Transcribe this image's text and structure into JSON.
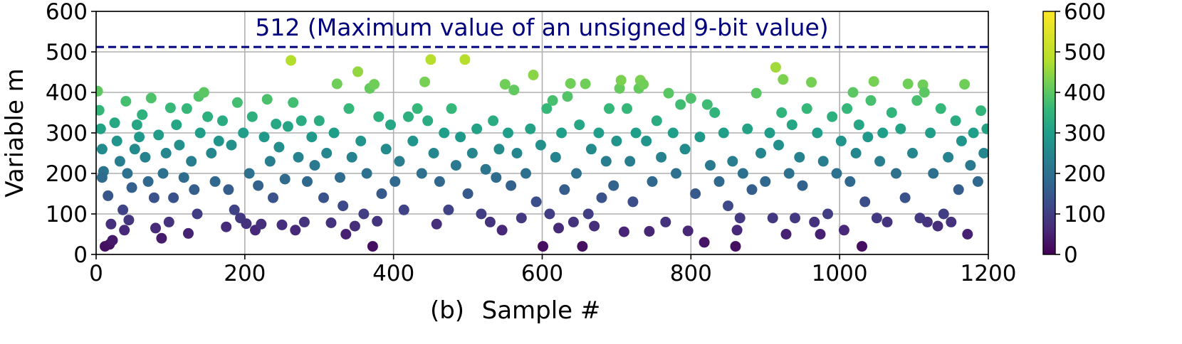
{
  "chart_data": {
    "type": "scatter",
    "xlabel": "Sample #",
    "panel_label": "(b)",
    "ylabel": "Variable m",
    "xlim": [
      0,
      1200
    ],
    "ylim": [
      0,
      600
    ],
    "x_ticks": [
      "0",
      "200",
      "400",
      "600",
      "800",
      "1000",
      "1200"
    ],
    "y_ticks": [
      "0",
      "100",
      "200",
      "300",
      "400",
      "500",
      "600"
    ],
    "grid": true,
    "colormap": "viridis",
    "colorbar": {
      "min": 0,
      "max": 600,
      "ticks": [
        "0",
        "100",
        "200",
        "300",
        "400",
        "500",
        "600"
      ]
    },
    "reference_line": {
      "y": 512,
      "style": "dashed",
      "color": "#00007f",
      "label": "512 (Maximum value of an unsigned 9-bit value)"
    },
    "points": [
      [
        2,
        403
      ],
      [
        4,
        356
      ],
      [
        6,
        310
      ],
      [
        8,
        260
      ],
      [
        10,
        205
      ],
      [
        8,
        190
      ],
      [
        12,
        20
      ],
      [
        16,
        145
      ],
      [
        18,
        25
      ],
      [
        20,
        75
      ],
      [
        22,
        35
      ],
      [
        25,
        325
      ],
      [
        28,
        280
      ],
      [
        32,
        230
      ],
      [
        36,
        110
      ],
      [
        38,
        60
      ],
      [
        40,
        378
      ],
      [
        42,
        200
      ],
      [
        44,
        85
      ],
      [
        48,
        165
      ],
      [
        52,
        260
      ],
      [
        55,
        320
      ],
      [
        58,
        290
      ],
      [
        62,
        345
      ],
      [
        66,
        240
      ],
      [
        70,
        180
      ],
      [
        74,
        386
      ],
      [
        78,
        140
      ],
      [
        80,
        65
      ],
      [
        84,
        295
      ],
      [
        88,
        40
      ],
      [
        90,
        200
      ],
      [
        94,
        250
      ],
      [
        98,
        80
      ],
      [
        100,
        362
      ],
      [
        104,
        140
      ],
      [
        108,
        320
      ],
      [
        112,
        270
      ],
      [
        118,
        190
      ],
      [
        122,
        360
      ],
      [
        124,
        52
      ],
      [
        128,
        230
      ],
      [
        132,
        160
      ],
      [
        136,
        100
      ],
      [
        138,
        390
      ],
      [
        140,
        300
      ],
      [
        145,
        400
      ],
      [
        150,
        340
      ],
      [
        155,
        250
      ],
      [
        160,
        180
      ],
      [
        165,
        280
      ],
      [
        170,
        330
      ],
      [
        175,
        68
      ],
      [
        178,
        160
      ],
      [
        182,
        270
      ],
      [
        186,
        110
      ],
      [
        190,
        375
      ],
      [
        194,
        90
      ],
      [
        198,
        300
      ],
      [
        202,
        76
      ],
      [
        206,
        200
      ],
      [
        210,
        340
      ],
      [
        214,
        60
      ],
      [
        218,
        170
      ],
      [
        222,
        75
      ],
      [
        226,
        290
      ],
      [
        230,
        383
      ],
      [
        234,
        230
      ],
      [
        238,
        140
      ],
      [
        242,
        322
      ],
      [
        246,
        265
      ],
      [
        250,
        73
      ],
      [
        254,
        186
      ],
      [
        258,
        316
      ],
      [
        262,
        479
      ],
      [
        265,
        375
      ],
      [
        268,
        60
      ],
      [
        272,
        240
      ],
      [
        276,
        330
      ],
      [
        280,
        80
      ],
      [
        284,
        180
      ],
      [
        290,
        290
      ],
      [
        294,
        220
      ],
      [
        300,
        330
      ],
      [
        306,
        140
      ],
      [
        310,
        250
      ],
      [
        316,
        78
      ],
      [
        320,
        300
      ],
      [
        324,
        421
      ],
      [
        328,
        190
      ],
      [
        332,
        120
      ],
      [
        336,
        50
      ],
      [
        340,
        360
      ],
      [
        344,
        240
      ],
      [
        348,
        70
      ],
      [
        352,
        451
      ],
      [
        356,
        280
      ],
      [
        360,
        100
      ],
      [
        364,
        200
      ],
      [
        368,
        410
      ],
      [
        372,
        20
      ],
      [
        374,
        420
      ],
      [
        378,
        82
      ],
      [
        380,
        340
      ],
      [
        384,
        150
      ],
      [
        390,
        260
      ],
      [
        396,
        320
      ],
      [
        402,
        180
      ],
      [
        408,
        230
      ],
      [
        414,
        110
      ],
      [
        420,
        340
      ],
      [
        426,
        280
      ],
      [
        432,
        360
      ],
      [
        438,
        200
      ],
      [
        442,
        426
      ],
      [
        446,
        330
      ],
      [
        450,
        481
      ],
      [
        454,
        250
      ],
      [
        458,
        75
      ],
      [
        462,
        180
      ],
      [
        468,
        300
      ],
      [
        474,
        110
      ],
      [
        478,
        360
      ],
      [
        484,
        220
      ],
      [
        490,
        290
      ],
      [
        496,
        481
      ],
      [
        500,
        150
      ],
      [
        506,
        250
      ],
      [
        512,
        310
      ],
      [
        518,
        100
      ],
      [
        524,
        210
      ],
      [
        530,
        80
      ],
      [
        534,
        330
      ],
      [
        538,
        190
      ],
      [
        542,
        260
      ],
      [
        546,
        60
      ],
      [
        550,
        420
      ],
      [
        554,
        300
      ],
      [
        558,
        170
      ],
      [
        562,
        406
      ],
      [
        566,
        250
      ],
      [
        572,
        90
      ],
      [
        578,
        200
      ],
      [
        584,
        310
      ],
      [
        588,
        443
      ],
      [
        592,
        130
      ],
      [
        598,
        270
      ],
      [
        601,
        20
      ],
      [
        606,
        360
      ],
      [
        610,
        100
      ],
      [
        614,
        380
      ],
      [
        618,
        240
      ],
      [
        622,
        65
      ],
      [
        626,
        300
      ],
      [
        630,
        160
      ],
      [
        634,
        390
      ],
      [
        638,
        422
      ],
      [
        642,
        80
      ],
      [
        646,
        200
      ],
      [
        650,
        320
      ],
      [
        654,
        20
      ],
      [
        658,
        421
      ],
      [
        662,
        100
      ],
      [
        666,
        260
      ],
      [
        670,
        70
      ],
      [
        676,
        300
      ],
      [
        680,
        140
      ],
      [
        686,
        230
      ],
      [
        690,
        360
      ],
      [
        696,
        170
      ],
      [
        700,
        280
      ],
      [
        704,
        410
      ],
      [
        706,
        430
      ],
      [
        710,
        56
      ],
      [
        714,
        360
      ],
      [
        718,
        230
      ],
      [
        722,
        130
      ],
      [
        726,
        300
      ],
      [
        730,
        410
      ],
      [
        732,
        430
      ],
      [
        736,
        420
      ],
      [
        740,
        280
      ],
      [
        744,
        57
      ],
      [
        748,
        180
      ],
      [
        754,
        330
      ],
      [
        760,
        240
      ],
      [
        766,
        80
      ],
      [
        770,
        398
      ],
      [
        776,
        300
      ],
      [
        780,
        200
      ],
      [
        786,
        370
      ],
      [
        792,
        260
      ],
      [
        796,
        58
      ],
      [
        800,
        385
      ],
      [
        806,
        150
      ],
      [
        812,
        290
      ],
      [
        818,
        30
      ],
      [
        822,
        370
      ],
      [
        826,
        220
      ],
      [
        832,
        350
      ],
      [
        838,
        180
      ],
      [
        844,
        300
      ],
      [
        850,
        120
      ],
      [
        856,
        230
      ],
      [
        860,
        20
      ],
      [
        862,
        60
      ],
      [
        866,
        90
      ],
      [
        870,
        200
      ],
      [
        876,
        310
      ],
      [
        882,
        160
      ],
      [
        888,
        398
      ],
      [
        894,
        250
      ],
      [
        900,
        180
      ],
      [
        906,
        300
      ],
      [
        910,
        90
      ],
      [
        914,
        462
      ],
      [
        918,
        270
      ],
      [
        922,
        350
      ],
      [
        924,
        432
      ],
      [
        928,
        50
      ],
      [
        932,
        200
      ],
      [
        936,
        320
      ],
      [
        940,
        90
      ],
      [
        946,
        240
      ],
      [
        950,
        170
      ],
      [
        956,
        360
      ],
      [
        962,
        425
      ],
      [
        966,
        80
      ],
      [
        970,
        300
      ],
      [
        974,
        50
      ],
      [
        978,
        230
      ],
      [
        984,
        100
      ],
      [
        990,
        340
      ],
      [
        996,
        200
      ],
      [
        1002,
        280
      ],
      [
        1006,
        60
      ],
      [
        1010,
        360
      ],
      [
        1014,
        180
      ],
      [
        1018,
        400
      ],
      [
        1022,
        250
      ],
      [
        1026,
        320
      ],
      [
        1030,
        20
      ],
      [
        1034,
        130
      ],
      [
        1038,
        290
      ],
      [
        1042,
        380
      ],
      [
        1046,
        427
      ],
      [
        1050,
        90
      ],
      [
        1054,
        230
      ],
      [
        1058,
        300
      ],
      [
        1064,
        80
      ],
      [
        1070,
        350
      ],
      [
        1076,
        200
      ],
      [
        1082,
        310
      ],
      [
        1088,
        140
      ],
      [
        1092,
        421
      ],
      [
        1098,
        250
      ],
      [
        1104,
        380
      ],
      [
        1108,
        90
      ],
      [
        1112,
        419
      ],
      [
        1114,
        400
      ],
      [
        1118,
        80
      ],
      [
        1122,
        300
      ],
      [
        1126,
        200
      ],
      [
        1132,
        70
      ],
      [
        1136,
        360
      ],
      [
        1140,
        100
      ],
      [
        1146,
        240
      ],
      [
        1150,
        80
      ],
      [
        1156,
        330
      ],
      [
        1160,
        160
      ],
      [
        1164,
        280
      ],
      [
        1168,
        420
      ],
      [
        1172,
        50
      ],
      [
        1176,
        220
      ],
      [
        1180,
        300
      ],
      [
        1186,
        180
      ],
      [
        1190,
        355
      ],
      [
        1194,
        250
      ],
      [
        1198,
        310
      ]
    ]
  }
}
